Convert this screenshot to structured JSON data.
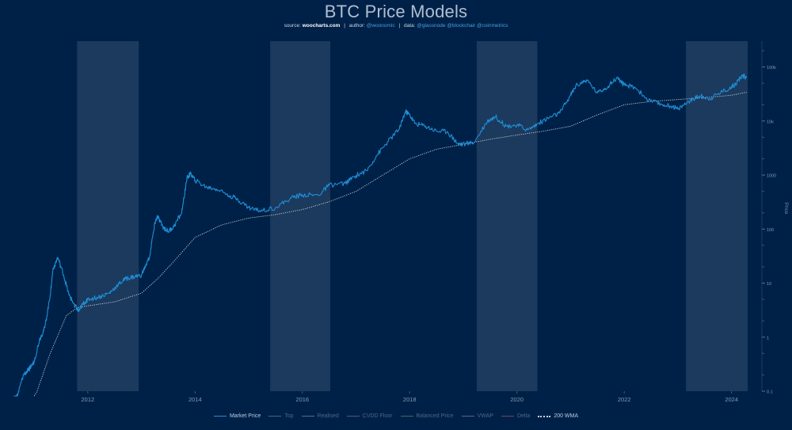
{
  "title": "BTC Price Models",
  "subtitle": {
    "source_prefix": "source:",
    "source_name": "woocharts.com",
    "author_prefix": "author:",
    "author": "@woonomic",
    "data_prefix": "data:",
    "data_sources": "@glassnode @blockchair @coinmetrics"
  },
  "legend": [
    {
      "label": "Market Price",
      "color": "#1f8fd8",
      "active": true,
      "dotted": false
    },
    {
      "label": "Top",
      "color": "#2e6f8c",
      "active": false,
      "dotted": false
    },
    {
      "label": "Realised",
      "color": "#4f6f8e",
      "active": false,
      "dotted": false
    },
    {
      "label": "CVDD Floor",
      "color": "#5b4f8e",
      "active": false,
      "dotted": false
    },
    {
      "label": "Balanced Price",
      "color": "#3f6a6a",
      "active": false,
      "dotted": false
    },
    {
      "label": "VWAP",
      "color": "#6a5a8a",
      "active": false,
      "dotted": false
    },
    {
      "label": "Delta",
      "color": "#6a4a5a",
      "active": false,
      "dotted": false
    },
    {
      "label": "200 WMA",
      "color": "#c9d4de",
      "active": true,
      "dotted": true
    }
  ],
  "chart_data": {
    "type": "line",
    "title": "BTC Price Models",
    "ylabel": "Price",
    "y_scale": "log",
    "ylim": [
      0.1,
      300000
    ],
    "xlim": [
      2010.6,
      2024.3
    ],
    "x_ticks": [
      "2012",
      "2014",
      "2016",
      "2018",
      "2020",
      "2022",
      "2024"
    ],
    "y_tick_labels": [
      "0.1",
      "1",
      "10",
      "100",
      "1000",
      "10k",
      "100k"
    ],
    "colors": {
      "background": "#002147",
      "shade": "#1f3d5f",
      "price": "#1f8fd8",
      "wma": "#c9d4de"
    },
    "shaded_periods": [
      [
        2011.8,
        2012.95
      ],
      [
        2015.4,
        2016.52
      ],
      [
        2019.25,
        2020.38
      ],
      [
        2023.15,
        2024.3
      ]
    ],
    "series": [
      {
        "name": "Market Price",
        "x": [
          2010.62,
          2010.7,
          2010.8,
          2010.9,
          2011.0,
          2011.1,
          2011.2,
          2011.3,
          2011.35,
          2011.44,
          2011.55,
          2011.65,
          2011.75,
          2011.83,
          2011.9,
          2012.0,
          2012.2,
          2012.4,
          2012.55,
          2012.7,
          2012.85,
          2013.0,
          2013.15,
          2013.25,
          2013.3,
          2013.4,
          2013.5,
          2013.6,
          2013.75,
          2013.85,
          2013.92,
          2014.0,
          2014.2,
          2014.4,
          2014.6,
          2014.8,
          2015.0,
          2015.2,
          2015.5,
          2015.8,
          2016.0,
          2016.3,
          2016.5,
          2016.8,
          2017.0,
          2017.2,
          2017.4,
          2017.6,
          2017.8,
          2017.92,
          2018.0,
          2018.1,
          2018.3,
          2018.5,
          2018.7,
          2018.9,
          2018.98,
          2019.2,
          2019.45,
          2019.6,
          2019.8,
          2020.0,
          2020.2,
          2020.4,
          2020.6,
          2020.8,
          2021.0,
          2021.1,
          2021.3,
          2021.5,
          2021.7,
          2021.87,
          2022.0,
          2022.2,
          2022.45,
          2022.7,
          2022.9,
          2023.0,
          2023.2,
          2023.4,
          2023.6,
          2023.8,
          2024.0,
          2024.1,
          2024.2,
          2024.28
        ],
        "values": [
          0.06,
          0.09,
          0.2,
          0.25,
          0.35,
          0.9,
          1.5,
          6,
          18,
          30,
          14,
          6,
          4,
          3,
          4,
          5,
          5.5,
          6.5,
          9,
          12,
          13,
          14,
          30,
          130,
          170,
          110,
          90,
          110,
          200,
          900,
          1050,
          800,
          600,
          550,
          450,
          350,
          250,
          220,
          250,
          380,
          430,
          420,
          650,
          700,
          980,
          1200,
          2400,
          4200,
          7000,
          15000,
          13000,
          9000,
          8000,
          6500,
          6400,
          3800,
          3700,
          4000,
          10000,
          12000,
          8000,
          8500,
          6800,
          9000,
          11500,
          14000,
          30000,
          45000,
          58000,
          33000,
          44000,
          64000,
          46000,
          42000,
          24000,
          20000,
          19000,
          16500,
          23000,
          29000,
          26000,
          34000,
          42000,
          52000,
          69000,
          64000
        ]
      },
      {
        "name": "200 WMA",
        "x": [
          2011.0,
          2011.3,
          2011.6,
          2011.8,
          2012.0,
          2012.5,
          2013.0,
          2013.3,
          2013.6,
          2014.0,
          2014.5,
          2015.0,
          2015.5,
          2016.0,
          2016.5,
          2017.0,
          2017.5,
          2018.0,
          2018.5,
          2019.0,
          2019.5,
          2020.0,
          2020.5,
          2021.0,
          2021.5,
          2022.0,
          2022.5,
          2023.0,
          2023.5,
          2024.0,
          2024.28
        ],
        "values": [
          0.07,
          0.5,
          2.5,
          3.5,
          3.8,
          4.5,
          6.5,
          12,
          25,
          70,
          120,
          160,
          185,
          230,
          320,
          500,
          1000,
          2000,
          3000,
          3700,
          4600,
          5500,
          6500,
          8000,
          13000,
          20000,
          23000,
          25000,
          27000,
          30000,
          34000
        ]
      }
    ]
  }
}
